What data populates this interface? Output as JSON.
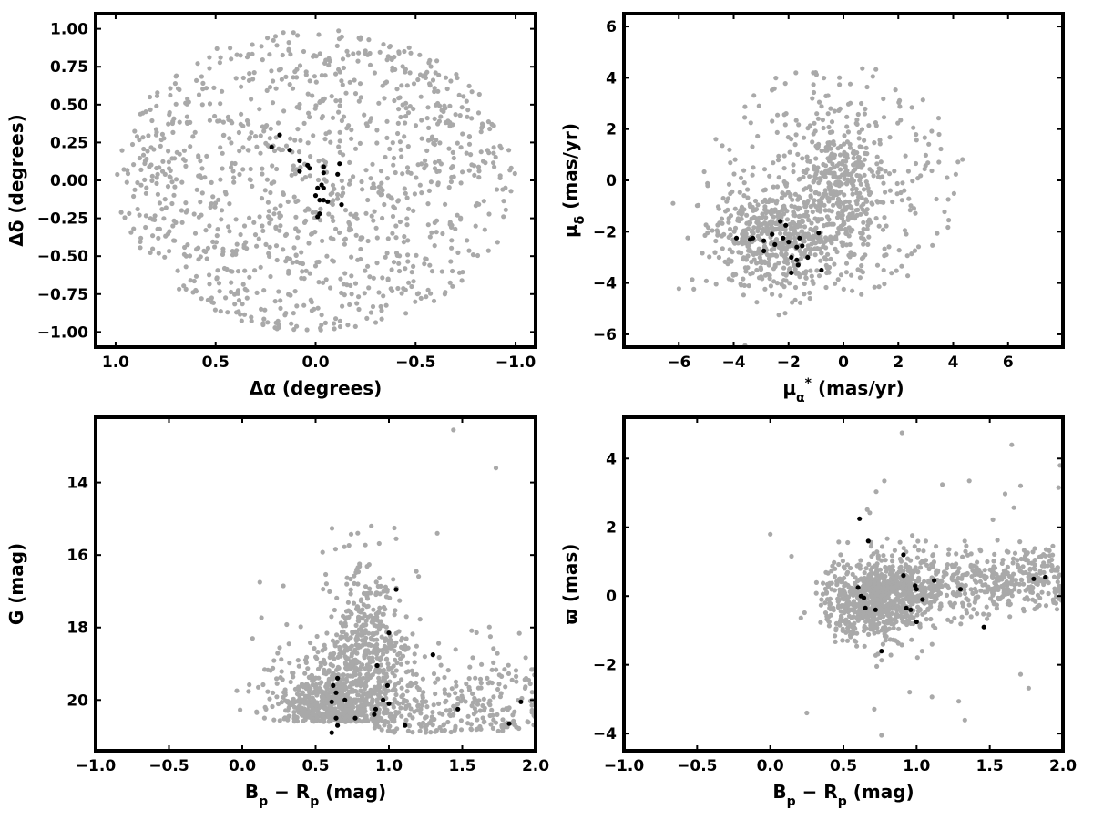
{
  "figure": {
    "background": "#ffffff",
    "frame_color": "#000000"
  },
  "colors": {
    "field": "#a9a9a9",
    "members": "#000000"
  },
  "chart_data": [
    {
      "type": "scatter",
      "xlabel": "Δα (degrees)",
      "ylabel": "Δδ (degrees)",
      "xlim": [
        1.1,
        -1.1
      ],
      "ylim": [
        -1.1,
        1.1
      ],
      "xticks": [
        1.0,
        0.5,
        0.0,
        -0.5,
        -1.0
      ],
      "xticklabels": [
        "1.0",
        "0.5",
        "0.0",
        "−0.5",
        "−1.0"
      ],
      "yticks": [
        -1.0,
        -0.75,
        -0.5,
        -0.25,
        0.0,
        0.25,
        0.5,
        0.75,
        1.0
      ],
      "yticklabels": [
        "−1.00",
        "−0.75",
        "−0.50",
        "−0.25",
        "0.00",
        "0.25",
        "0.50",
        "0.75",
        "1.00"
      ],
      "grid": false,
      "field": {
        "n": 1100,
        "shape": "disk",
        "center": [
          0,
          0
        ],
        "radius": 1.0
      },
      "members": [
        [
          0.22,
          0.22
        ],
        [
          0.18,
          0.3
        ],
        [
          0.13,
          0.2
        ],
        [
          0.08,
          0.13
        ],
        [
          0.08,
          0.06
        ],
        [
          0.04,
          0.1
        ],
        [
          0.03,
          0.08
        ],
        [
          -0.01,
          -0.05
        ],
        [
          0.0,
          -0.1
        ],
        [
          -0.02,
          -0.13
        ],
        [
          -0.04,
          -0.13
        ],
        [
          -0.06,
          -0.14
        ],
        [
          -0.03,
          -0.03
        ],
        [
          -0.04,
          -0.05
        ],
        [
          -0.02,
          -0.22
        ],
        [
          -0.01,
          -0.24
        ],
        [
          -0.04,
          0.09
        ],
        [
          -0.04,
          0.05
        ],
        [
          -0.12,
          0.11
        ],
        [
          -0.11,
          0.04
        ],
        [
          -0.13,
          -0.16
        ]
      ]
    },
    {
      "type": "scatter",
      "xlabel": "μ*α (mas/yr)",
      "ylabel": "μδ (mas/yr)",
      "xlim": [
        -8,
        8
      ],
      "ylim": [
        -6.5,
        6.5
      ],
      "xticks": [
        -6,
        -4,
        -2,
        0,
        2,
        4,
        6
      ],
      "xticklabels": [
        "−6",
        "−4",
        "−2",
        "0",
        "2",
        "4",
        "6"
      ],
      "yticks": [
        -6,
        -4,
        -2,
        0,
        2,
        4,
        6
      ],
      "yticklabels": [
        "−6",
        "−4",
        "−2",
        "0",
        "2",
        "4",
        "6"
      ],
      "grid": false,
      "field": {
        "n": 1100,
        "shape": "clusters"
      },
      "members": [
        [
          -3.9,
          -2.25
        ],
        [
          -3.4,
          -2.3
        ],
        [
          -3.3,
          -2.25
        ],
        [
          -2.9,
          -2.35
        ],
        [
          -2.9,
          -2.75
        ],
        [
          -2.6,
          -2.1
        ],
        [
          -2.5,
          -2.5
        ],
        [
          -2.3,
          -1.6
        ],
        [
          -2.2,
          -2.25
        ],
        [
          -2.1,
          -1.75
        ],
        [
          -2.0,
          -2.4
        ],
        [
          -1.9,
          -3.0
        ],
        [
          -1.9,
          -3.6
        ],
        [
          -1.7,
          -2.6
        ],
        [
          -1.7,
          -3.1
        ],
        [
          -1.65,
          -3.3
        ],
        [
          -1.6,
          -2.25
        ],
        [
          -1.5,
          -2.55
        ],
        [
          -1.3,
          -3.0
        ],
        [
          -0.9,
          -2.05
        ],
        [
          -0.8,
          -3.5
        ]
      ]
    },
    {
      "type": "scatter",
      "xlabel": "Bp − Rp (mag)",
      "ylabel": "G (mag)",
      "xlim": [
        -1.0,
        2.0
      ],
      "ylim": [
        21.4,
        12.2
      ],
      "xticks": [
        -1.0,
        -0.5,
        0.0,
        0.5,
        1.0,
        1.5,
        2.0
      ],
      "xticklabels": [
        "−1.0",
        "−0.5",
        "0.0",
        "0.5",
        "1.0",
        "1.5",
        "2.0"
      ],
      "yticks": [
        14,
        16,
        18,
        20
      ],
      "yticklabels": [
        "14",
        "16",
        "18",
        "20"
      ],
      "grid": false,
      "field": {
        "n": 1300,
        "shape": "cmd"
      },
      "members": [
        [
          0.61,
          20.9
        ],
        [
          0.65,
          20.7
        ],
        [
          0.64,
          20.5
        ],
        [
          0.77,
          20.5
        ],
        [
          0.9,
          20.4
        ],
        [
          0.91,
          20.25
        ],
        [
          1.0,
          20.1
        ],
        [
          0.61,
          20.05
        ],
        [
          0.7,
          20.0
        ],
        [
          0.96,
          20.0
        ],
        [
          0.64,
          19.8
        ],
        [
          0.62,
          19.6
        ],
        [
          0.99,
          19.6
        ],
        [
          0.65,
          19.4
        ],
        [
          0.92,
          19.05
        ],
        [
          1.3,
          18.75
        ],
        [
          1.0,
          18.15
        ],
        [
          1.05,
          16.95
        ],
        [
          1.11,
          20.7
        ],
        [
          1.47,
          20.25
        ],
        [
          1.82,
          20.65
        ],
        [
          1.9,
          20.05
        ]
      ]
    },
    {
      "type": "scatter",
      "xlabel": "Bp − Rp (mag)",
      "ylabel": "ϖ (mas)",
      "xlim": [
        -1.0,
        2.0
      ],
      "ylim": [
        -4.5,
        5.2
      ],
      "xticks": [
        -1.0,
        -0.5,
        0.0,
        0.5,
        1.0,
        1.5,
        2.0
      ],
      "xticklabels": [
        "−1.0",
        "−0.5",
        "0.0",
        "0.5",
        "1.0",
        "1.5",
        "2.0"
      ],
      "yticks": [
        -4,
        -2,
        0,
        2,
        4
      ],
      "yticklabels": [
        "−4",
        "−2",
        "0",
        "2",
        "4"
      ],
      "grid": false,
      "field": {
        "n": 1300,
        "shape": "parallax"
      },
      "members": [
        [
          0.61,
          2.25
        ],
        [
          0.67,
          1.6
        ],
        [
          0.6,
          0.25
        ],
        [
          0.62,
          0.0
        ],
        [
          0.64,
          -0.05
        ],
        [
          0.65,
          -0.35
        ],
        [
          0.72,
          -0.4
        ],
        [
          0.76,
          -1.6
        ],
        [
          0.91,
          1.2
        ],
        [
          0.91,
          0.6
        ],
        [
          0.93,
          -0.35
        ],
        [
          0.96,
          -0.4
        ],
        [
          0.99,
          0.3
        ],
        [
          1.0,
          0.2
        ],
        [
          1.04,
          -0.1
        ],
        [
          1.0,
          -0.75
        ],
        [
          1.12,
          0.45
        ],
        [
          1.3,
          0.2
        ],
        [
          1.46,
          -0.9
        ],
        [
          1.8,
          0.5
        ],
        [
          1.88,
          0.55
        ]
      ]
    }
  ]
}
